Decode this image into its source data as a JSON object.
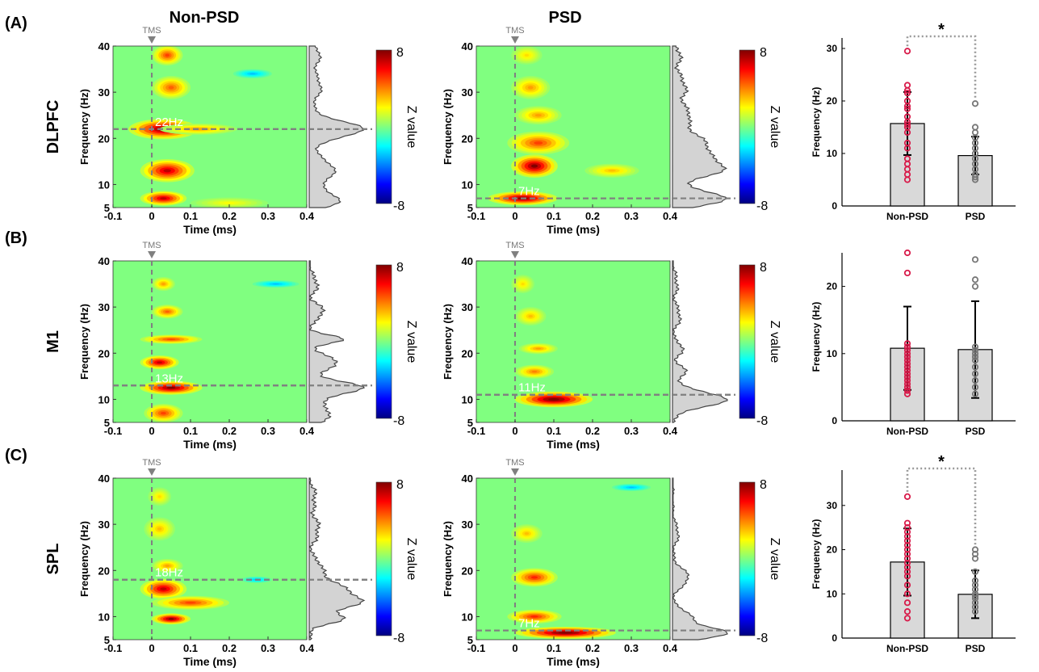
{
  "figure": {
    "column_titles": [
      "Non-PSD",
      "PSD"
    ],
    "panel_labels": [
      "(A)",
      "(B)",
      "(C)"
    ],
    "row_labels": [
      "DLPFC",
      "M1",
      "SPL"
    ],
    "tms_label": "TMS",
    "colorbar": {
      "label": "Z value",
      "max_label": "8",
      "min_label": "-8"
    }
  },
  "colors": {
    "nonpsd_points": "#d81b4a",
    "psd_points": "#777777",
    "bar_fill": "#d9d9d9",
    "dashed_line": "#808080"
  },
  "chart_data": [
    {
      "type": "heatmap",
      "row": "DLPFC",
      "group": "Non-PSD",
      "xlabel": "Time (ms)",
      "ylabel": "Frequency (Hz)",
      "xlim": [
        -0.1,
        0.4
      ],
      "ylim": [
        5,
        40
      ],
      "xticks": [
        "-0.1",
        "0",
        "0.1",
        "0.2",
        "0.3",
        "0.4"
      ],
      "yticks": [
        "5",
        "10",
        "20",
        "30",
        "40"
      ],
      "peak_label": "22Hz",
      "peak_freq": 22,
      "zlim": [
        -8,
        8
      ],
      "blobs": [
        {
          "t": 0.03,
          "f": 22,
          "z": 8,
          "dt": 0.09,
          "df": 2.2
        },
        {
          "t": 0.12,
          "f": 22,
          "z": 3.5,
          "dt": 0.1,
          "df": 1.2
        },
        {
          "t": 0.04,
          "f": 13,
          "z": 7,
          "dt": 0.07,
          "df": 2.5
        },
        {
          "t": 0.03,
          "f": 7,
          "z": 7,
          "dt": 0.06,
          "df": 1.6
        },
        {
          "t": 0.05,
          "f": 31,
          "z": 4.5,
          "dt": 0.05,
          "df": 2.5
        },
        {
          "t": 0.04,
          "f": 38,
          "z": 5,
          "dt": 0.04,
          "df": 2.2
        },
        {
          "t": 0.26,
          "f": 34,
          "z": -3,
          "dt": 0.05,
          "df": 1
        },
        {
          "t": 0.2,
          "f": 6,
          "z": 2,
          "dt": 0.1,
          "df": 1.2
        }
      ]
    },
    {
      "type": "heatmap",
      "row": "DLPFC",
      "group": "PSD",
      "xlabel": "Time (ms)",
      "ylabel": "Frequency (Hz)",
      "xlim": [
        -0.1,
        0.4
      ],
      "ylim": [
        5,
        40
      ],
      "xticks": [
        "-0.1",
        "0",
        "0.1",
        "0.2",
        "0.3",
        "0.4"
      ],
      "yticks": [
        "5",
        "10",
        "20",
        "30",
        "40"
      ],
      "peak_label": "7Hz",
      "peak_freq": 7,
      "zlim": [
        -8,
        8
      ],
      "blobs": [
        {
          "t": 0.02,
          "f": 7,
          "z": 8,
          "dt": 0.09,
          "df": 1.5
        },
        {
          "t": 0.05,
          "f": 14,
          "z": 8,
          "dt": 0.06,
          "df": 2.5
        },
        {
          "t": 0.06,
          "f": 19,
          "z": 5,
          "dt": 0.08,
          "df": 2.5
        },
        {
          "t": 0.06,
          "f": 25,
          "z": 3.5,
          "dt": 0.06,
          "df": 2
        },
        {
          "t": 0.04,
          "f": 31,
          "z": 3.5,
          "dt": 0.05,
          "df": 2.5
        },
        {
          "t": 0.03,
          "f": 38,
          "z": 2.5,
          "dt": 0.04,
          "df": 2
        },
        {
          "t": 0.25,
          "f": 13,
          "z": 3,
          "dt": 0.07,
          "df": 1.5
        }
      ]
    },
    {
      "type": "heatmap",
      "row": "M1",
      "group": "Non-PSD",
      "xlabel": "Time (ms)",
      "ylabel": "Frequency (Hz)",
      "xlim": [
        -0.1,
        0.4
      ],
      "ylim": [
        5,
        40
      ],
      "xticks": [
        "-0.1",
        "0",
        "0.1",
        "0.2",
        "0.3",
        "0.4"
      ],
      "yticks": [
        "5",
        "10",
        "20",
        "30",
        "40"
      ],
      "peak_label": "13Hz",
      "peak_freq": 13,
      "zlim": [
        -8,
        8
      ],
      "blobs": [
        {
          "t": 0.05,
          "f": 12.5,
          "z": 8,
          "dt": 0.08,
          "df": 1.5
        },
        {
          "t": 0.02,
          "f": 18,
          "z": 7,
          "dt": 0.05,
          "df": 1.5
        },
        {
          "t": 0.05,
          "f": 23,
          "z": 5,
          "dt": 0.08,
          "df": 1
        },
        {
          "t": 0.04,
          "f": 29,
          "z": 4.5,
          "dt": 0.04,
          "df": 1.5
        },
        {
          "t": 0.03,
          "f": 35,
          "z": 3.5,
          "dt": 0.03,
          "df": 1.5
        },
        {
          "t": 0.03,
          "f": 7,
          "z": 5,
          "dt": 0.05,
          "df": 2
        },
        {
          "t": 0.32,
          "f": 35,
          "z": -3,
          "dt": 0.06,
          "df": 0.8
        }
      ]
    },
    {
      "type": "heatmap",
      "row": "M1",
      "group": "PSD",
      "xlabel": "Time (ms)",
      "ylabel": "Frequency (Hz)",
      "xlim": [
        -0.1,
        0.4
      ],
      "ylim": [
        5,
        40
      ],
      "xticks": [
        "-0.1",
        "0",
        "0.1",
        "0.2",
        "0.3",
        "0.4"
      ],
      "yticks": [
        "5",
        "10",
        "20",
        "30",
        "40"
      ],
      "peak_label": "11Hz",
      "peak_freq": 11,
      "zlim": [
        -8,
        8
      ],
      "blobs": [
        {
          "t": 0.1,
          "f": 10,
          "z": 8.5,
          "dt": 0.1,
          "df": 1.7
        },
        {
          "t": 0.05,
          "f": 16,
          "z": 4,
          "dt": 0.05,
          "df": 1.5
        },
        {
          "t": 0.06,
          "f": 21,
          "z": 3.5,
          "dt": 0.05,
          "df": 1.2
        },
        {
          "t": 0.04,
          "f": 28,
          "z": 3,
          "dt": 0.04,
          "df": 2
        },
        {
          "t": 0.02,
          "f": 35,
          "z": 2.5,
          "dt": 0.03,
          "df": 2
        }
      ]
    },
    {
      "type": "heatmap",
      "row": "SPL",
      "group": "Non-PSD",
      "xlabel": "Time (ms)",
      "ylabel": "Frequency (Hz)",
      "xlim": [
        -0.1,
        0.4
      ],
      "ylim": [
        5,
        40
      ],
      "xticks": [
        "-0.1",
        "0",
        "0.1",
        "0.2",
        "0.3",
        "0.4"
      ],
      "yticks": [
        "5",
        "10",
        "20",
        "30",
        "40"
      ],
      "peak_label": "18Hz",
      "peak_freq": 18,
      "zlim": [
        -8,
        8
      ],
      "blobs": [
        {
          "t": 0.03,
          "f": 16,
          "z": 7,
          "dt": 0.06,
          "df": 2.2
        },
        {
          "t": 0.1,
          "f": 13,
          "z": 5,
          "dt": 0.1,
          "df": 1.5
        },
        {
          "t": 0.05,
          "f": 9.5,
          "z": 8,
          "dt": 0.05,
          "df": 1.2
        },
        {
          "t": 0.04,
          "f": 21,
          "z": 3.5,
          "dt": 0.04,
          "df": 1.5
        },
        {
          "t": 0.02,
          "f": 29,
          "z": 3,
          "dt": 0.04,
          "df": 2.5
        },
        {
          "t": 0.02,
          "f": 36,
          "z": 2.5,
          "dt": 0.03,
          "df": 2
        },
        {
          "t": 0.27,
          "f": 18,
          "z": -3,
          "dt": 0.04,
          "df": 0.7
        }
      ]
    },
    {
      "type": "heatmap",
      "row": "SPL",
      "group": "PSD",
      "xlabel": "Time (ms)",
      "ylabel": "Frequency (Hz)",
      "xlim": [
        -0.1,
        0.4
      ],
      "ylim": [
        5,
        40
      ],
      "xticks": [
        "-0.1",
        "0",
        "0.1",
        "0.2",
        "0.3",
        "0.4"
      ],
      "yticks": [
        "5",
        "10",
        "20",
        "30",
        "40"
      ],
      "peak_label": "7Hz",
      "peak_freq": 7,
      "zlim": [
        -8,
        8
      ],
      "blobs": [
        {
          "t": 0.13,
          "f": 6.5,
          "z": 8.5,
          "dt": 0.13,
          "df": 1.3
        },
        {
          "t": 0.05,
          "f": 10,
          "z": 5.5,
          "dt": 0.07,
          "df": 1.5
        },
        {
          "t": 0.05,
          "f": 18.5,
          "z": 5.5,
          "dt": 0.06,
          "df": 2
        },
        {
          "t": 0.03,
          "f": 28,
          "z": 3,
          "dt": 0.04,
          "df": 2
        },
        {
          "t": 0.3,
          "f": 38,
          "z": -3,
          "dt": 0.05,
          "df": 0.8
        }
      ]
    },
    {
      "type": "bar",
      "row": "DLPFC",
      "categories": [
        "Non-PSD",
        "PSD"
      ],
      "values": [
        15.7,
        9.6
      ],
      "errors": [
        6.0,
        3.6
      ],
      "ylabel": "Frequency (Hz)",
      "ylim": [
        0,
        32
      ],
      "yticks": [
        0,
        10,
        20,
        30
      ],
      "significance": "*",
      "points": [
        [
          29.5,
          23,
          22,
          21.5,
          20,
          19,
          18.5,
          17,
          16,
          15.5,
          15,
          14,
          12,
          11,
          9,
          8,
          7,
          6,
          5
        ],
        [
          19.5,
          15,
          14,
          13,
          12,
          11,
          10,
          9,
          8,
          7,
          6,
          5.5,
          5
        ]
      ]
    },
    {
      "type": "bar",
      "row": "M1",
      "categories": [
        "Non-PSD",
        "PSD"
      ],
      "values": [
        10.8,
        10.6
      ],
      "errors": [
        6.2,
        7.2
      ],
      "ylabel": "Frequency (Hz)",
      "ylim": [
        0,
        25
      ],
      "yticks": [
        0,
        10,
        20
      ],
      "significance": "",
      "points": [
        [
          25,
          22,
          11.5,
          11,
          10.5,
          10,
          9.5,
          9,
          8.5,
          8,
          7.5,
          7,
          6.5,
          6,
          5.5,
          5,
          4.5,
          4.5,
          4
        ],
        [
          24,
          21,
          20,
          11,
          10.5,
          10,
          9.5,
          9,
          8,
          7,
          6,
          5,
          4
        ]
      ]
    },
    {
      "type": "bar",
      "row": "SPL",
      "categories": [
        "Non-PSD",
        "PSD"
      ],
      "values": [
        17.2,
        9.9
      ],
      "errors": [
        7.6,
        5.4
      ],
      "ylabel": "Frequency (Hz)",
      "ylim": [
        0,
        38
      ],
      "yticks": [
        0,
        10,
        20,
        30
      ],
      "significance": "*",
      "points": [
        [
          32,
          26,
          25,
          24,
          23,
          22,
          21,
          20,
          19,
          18,
          17,
          16,
          15,
          14,
          12,
          10,
          8,
          6,
          4.5
        ],
        [
          20,
          19,
          18,
          15,
          13,
          12,
          11,
          10,
          9.5,
          9,
          8,
          7,
          7,
          6
        ]
      ]
    }
  ]
}
